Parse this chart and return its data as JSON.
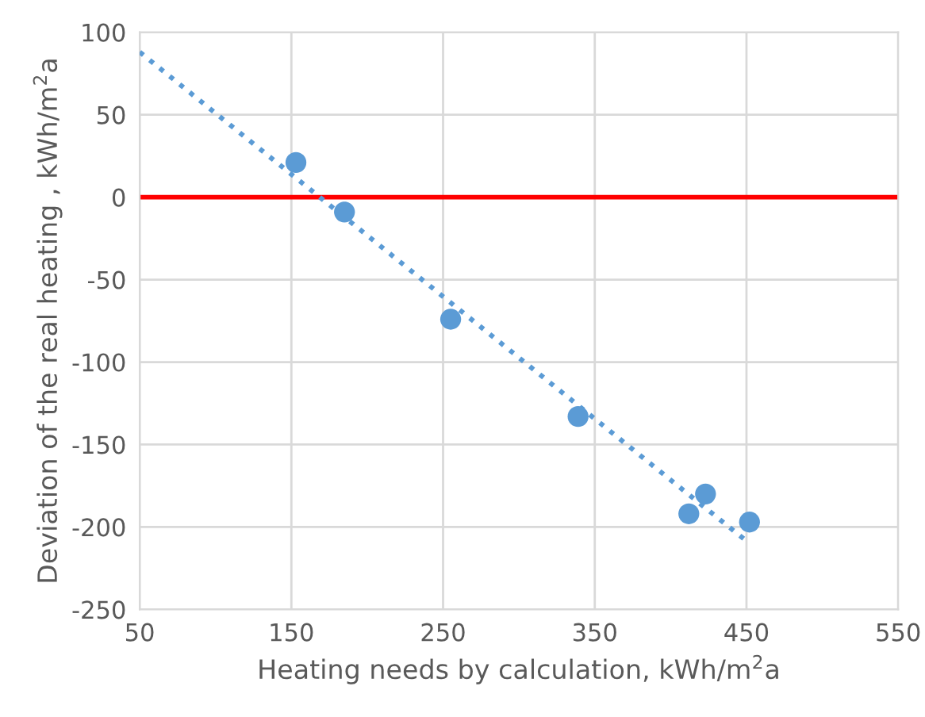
{
  "chart_data": {
    "type": "scatter",
    "xlabel": "Heating needs by calculation, kWh/m$^{2}$a",
    "ylabel": "Deviation of the real heating , kWh/m$^{2}$a",
    "series": [
      {
        "color": "#5b9bd5",
        "marker": "circle",
        "x": [
          153,
          185,
          255,
          339,
          412,
          423,
          452
        ],
        "values": [
          21,
          -9,
          -74,
          -133,
          -192,
          -180,
          -197
        ]
      },
      {
        "type": "line",
        "color": "#5b9bd5",
        "line_style": "dotted",
        "marker": "none",
        "x": [
          50,
          452
        ],
        "values": [
          88,
          -210
        ]
      }
    ],
    "ref_lines": [
      {
        "axis": "y",
        "value": 0,
        "color": "#ff0000",
        "line_style": "solid"
      }
    ],
    "xlim": [
      50,
      550
    ],
    "xticks": [
      50,
      150,
      250,
      350,
      450,
      550
    ],
    "ylim": [
      -250,
      100
    ],
    "yticks": [
      -250,
      -200,
      -150,
      -100,
      -50,
      0,
      50,
      100
    ],
    "grid": true,
    "legend": false
  }
}
